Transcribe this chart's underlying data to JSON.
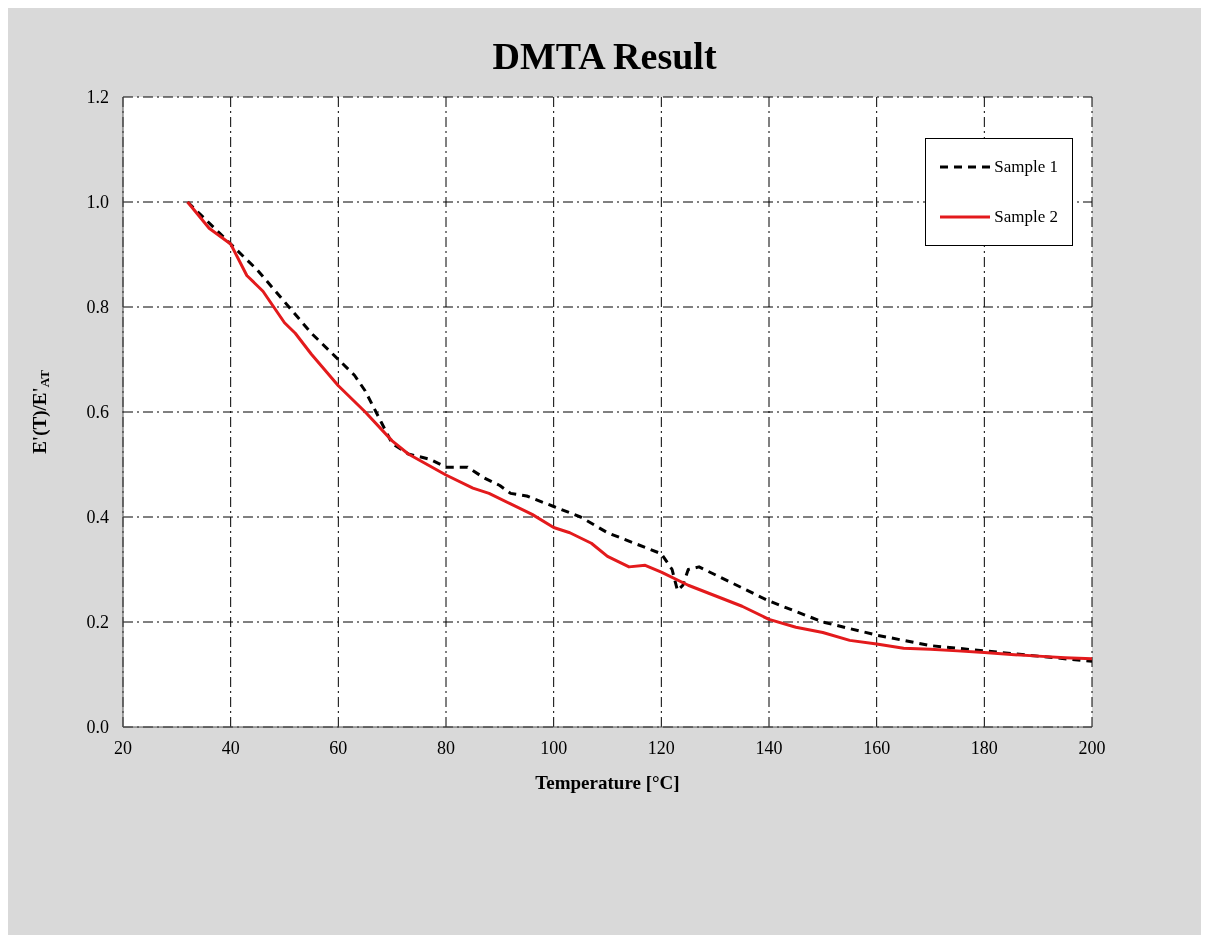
{
  "chart_data": {
    "type": "line",
    "title": "DMTA Result",
    "xlabel": "Temperature [°C]",
    "ylabel": "E'(T)/E'$_{AT}$",
    "xlim": [
      20,
      200
    ],
    "xticks": [
      20,
      40,
      60,
      80,
      100,
      120,
      140,
      160,
      180,
      200
    ],
    "ylim": [
      0,
      1.2
    ],
    "yticks": [
      {
        "value": 0,
        "label": "0.0"
      },
      0.2,
      0.4,
      0.6,
      0.8,
      {
        "value": 1,
        "label": "1.0"
      },
      1.2
    ],
    "grid": true,
    "legend": "top right",
    "marker": "none",
    "series": [
      {
        "name": "Sample 1",
        "color": "#000000",
        "line_style": "dashed",
        "x": [
          32,
          40,
          45,
          50,
          55,
          60,
          63,
          65,
          68,
          70,
          73,
          77,
          80,
          84,
          87,
          90,
          92,
          95,
          100,
          105,
          110,
          115,
          120,
          122,
          123,
          124,
          125,
          127,
          130,
          140,
          150,
          160,
          170,
          180,
          190,
          200
        ],
        "values": [
          1.0,
          0.92,
          0.87,
          0.81,
          0.75,
          0.7,
          0.67,
          0.64,
          0.58,
          0.54,
          0.52,
          0.51,
          0.495,
          0.495,
          0.475,
          0.46,
          0.445,
          0.44,
          0.42,
          0.4,
          0.37,
          0.35,
          0.33,
          0.3,
          0.26,
          0.27,
          0.3,
          0.305,
          0.29,
          0.24,
          0.2,
          0.175,
          0.155,
          0.145,
          0.135,
          0.125
        ]
      },
      {
        "name": "Sample 2",
        "color": "#e31a1c",
        "line_style": "solid",
        "x": [
          32,
          36,
          40,
          43,
          46,
          48,
          50,
          52,
          55,
          60,
          65,
          70,
          73,
          80,
          85,
          88,
          92,
          96,
          100,
          103,
          107,
          110,
          114,
          117,
          120,
          125,
          130,
          135,
          140,
          145,
          150,
          155,
          160,
          165,
          170,
          175,
          180,
          185,
          190,
          195,
          200
        ],
        "values": [
          1.0,
          0.95,
          0.92,
          0.86,
          0.83,
          0.8,
          0.77,
          0.75,
          0.71,
          0.65,
          0.6,
          0.545,
          0.52,
          0.48,
          0.455,
          0.445,
          0.425,
          0.405,
          0.38,
          0.37,
          0.35,
          0.325,
          0.305,
          0.308,
          0.295,
          0.27,
          0.25,
          0.23,
          0.205,
          0.19,
          0.18,
          0.165,
          0.158,
          0.15,
          0.148,
          0.145,
          0.142,
          0.138,
          0.135,
          0.132,
          0.13
        ]
      }
    ]
  }
}
